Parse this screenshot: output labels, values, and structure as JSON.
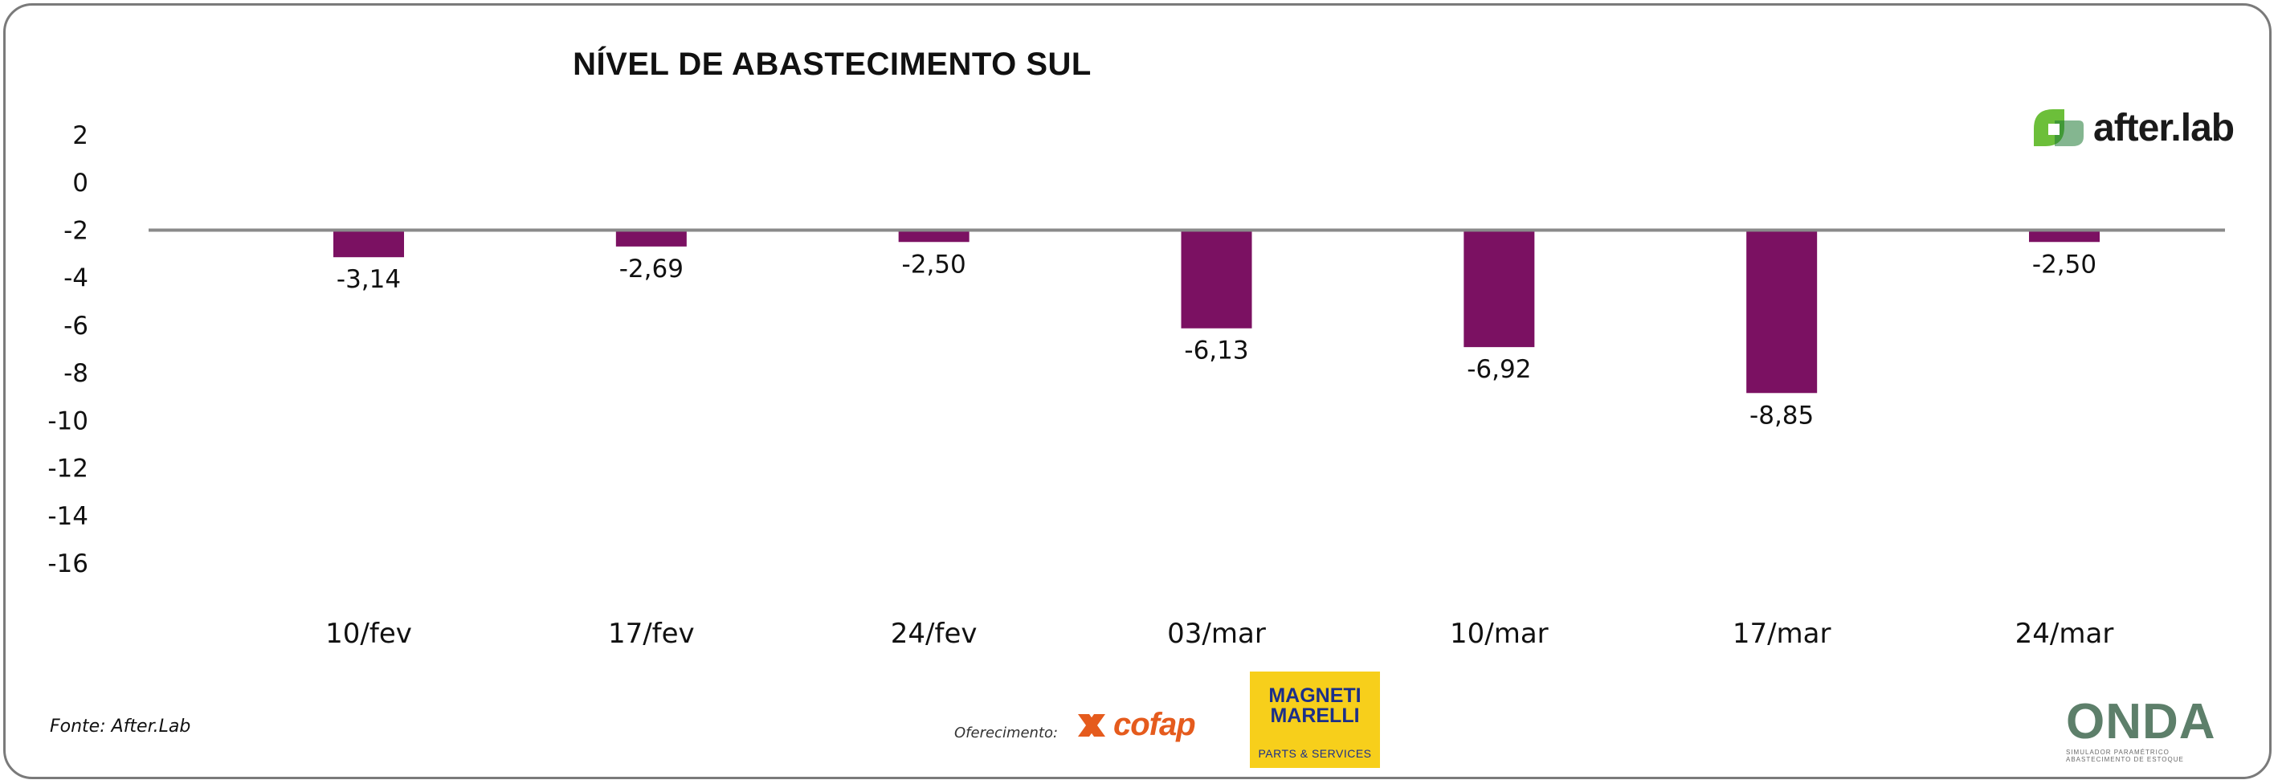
{
  "chart_data": {
    "type": "bar",
    "title": "NÍVEL DE ABASTECIMENTO SUL",
    "categories": [
      "10/fev",
      "17/fev",
      "24/fev",
      "03/mar",
      "10/mar",
      "17/mar",
      "24/mar"
    ],
    "values": [
      -3.14,
      -2.69,
      -2.5,
      -6.13,
      -6.92,
      -8.85,
      -2.5
    ],
    "data_labels": [
      "-3,14",
      "-2,69",
      "-2,50",
      "-6,13",
      "-6,92",
      "-8,85",
      "-2,50"
    ],
    "baseline": -2,
    "ylim": [
      -16,
      2
    ],
    "yticks": [
      2,
      0,
      -2,
      -4,
      -6,
      -8,
      -10,
      -12,
      -14,
      -16
    ],
    "ytick_labels": [
      "2",
      "0",
      "-2",
      "-4",
      "-6",
      "-8",
      "-10",
      "-12",
      "-14",
      "-16"
    ],
    "bar_color": "#7b1162",
    "baseline_color": "#8a8a8a",
    "grid": false,
    "legend": "none"
  },
  "footer": {
    "source": "Fonte: After.Lab",
    "offer_label": "Oferecimento:"
  },
  "logos": {
    "afterlab": {
      "text": "after.lab",
      "icon": "afterlab-leaf-icon",
      "color": "#6cbf3a"
    },
    "cofap": {
      "text": "cofap",
      "icon": "cofap-mark-icon",
      "color": "#e55b1d"
    },
    "magneti_marelli": {
      "name": "MAGNETI MARELLI",
      "subtitle": "PARTS & SERVICES",
      "bg": "#f7cf1b",
      "color": "#1b2f8a"
    },
    "onda": {
      "text": "ONDA",
      "subtitle": "SIMULADOR PARAMÉTRICO ABASTECIMENTO DE ESTOQUE"
    }
  }
}
